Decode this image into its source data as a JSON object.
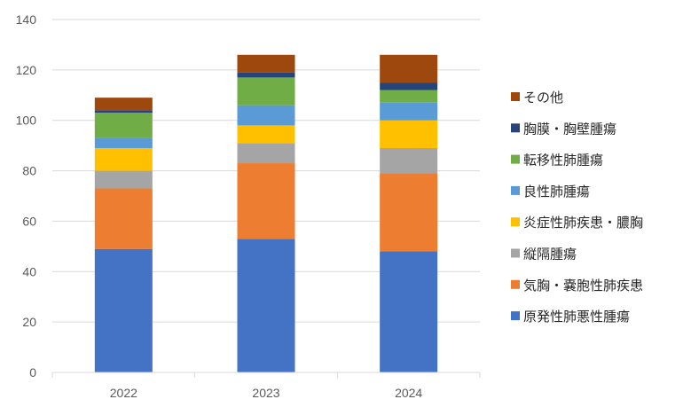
{
  "chart_data": {
    "type": "bar",
    "stacked": true,
    "categories": [
      "2022",
      "2023",
      "2024"
    ],
    "ylim": [
      0,
      140
    ],
    "yticks": [
      0,
      20,
      40,
      60,
      80,
      100,
      120,
      140
    ],
    "grid": true,
    "legend_position": "right",
    "series": [
      {
        "name": "原発性肺悪性腫瘍",
        "color": "#4472C4",
        "values": [
          49,
          53,
          48
        ]
      },
      {
        "name": "気胸・嚢胞性肺疾患",
        "color": "#ED7D31",
        "values": [
          24,
          30,
          31
        ]
      },
      {
        "name": "縦隔腫瘍",
        "color": "#A5A5A5",
        "values": [
          7,
          8,
          10
        ]
      },
      {
        "name": "炎症性肺疾患・膿胸",
        "color": "#FFC000",
        "values": [
          9,
          7,
          11
        ]
      },
      {
        "name": "良性肺腫瘍",
        "color": "#5B9BD5",
        "values": [
          4,
          8,
          7
        ]
      },
      {
        "name": "転移性肺腫瘍",
        "color": "#70AD47",
        "values": [
          10,
          11,
          5
        ]
      },
      {
        "name": "胸膜・胸壁腫瘍",
        "color": "#264478",
        "values": [
          1,
          2,
          3
        ]
      },
      {
        "name": "その他",
        "color": "#9E480E",
        "values": [
          5,
          7,
          11
        ]
      }
    ]
  }
}
